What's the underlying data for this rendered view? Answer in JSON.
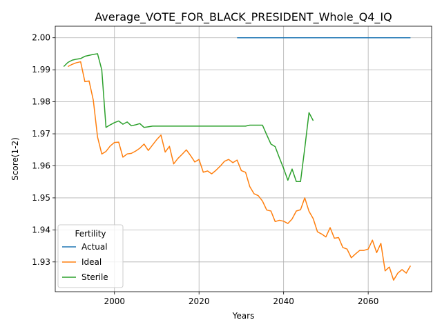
{
  "chart_data": {
    "type": "line",
    "title": "Average_VOTE_FOR_BLACK_PRESIDENT_Whole_Q4_IQ",
    "xlabel": "Years",
    "ylabel": "Score(1-2)",
    "xlim": [
      1986,
      2075
    ],
    "ylim": [
      1.9207,
      2.0036
    ],
    "xticks": [
      2000,
      2020,
      2040,
      2060
    ],
    "xtick_labels": [
      "2000",
      "2020",
      "2040",
      "2060"
    ],
    "yticks": [
      1.93,
      1.94,
      1.95,
      1.96,
      1.97,
      1.98,
      1.99,
      2.0
    ],
    "ytick_labels": [
      "1.93",
      "1.94",
      "1.95",
      "1.96",
      "1.97",
      "1.98",
      "1.99",
      "2.00"
    ],
    "grid": true,
    "legend": {
      "title": "Fertility",
      "placement": "lower left"
    },
    "series": [
      {
        "name": "Actual",
        "color": "#1f77b4",
        "x": [
          2029,
          2070
        ],
        "y": [
          2.0,
          2.0
        ]
      },
      {
        "name": "Ideal",
        "color": "#ff7f0e",
        "x": [
          1989,
          1990,
          1991,
          1992,
          1993,
          1994,
          1995,
          1996,
          1997,
          1998,
          1999,
          2000,
          2001,
          2002,
          2003,
          2004,
          2005,
          2006,
          2007,
          2008,
          2009,
          2010,
          2011,
          2012,
          2013,
          2014,
          2015,
          2016,
          2017,
          2018,
          2019,
          2020,
          2021,
          2022,
          2023,
          2024,
          2025,
          2026,
          2027,
          2028,
          2029,
          2030,
          2031,
          2032,
          2033,
          2034,
          2035,
          2036,
          2037,
          2038,
          2039,
          2040,
          2041,
          2042,
          2043,
          2044,
          2045,
          2046,
          2047,
          2048,
          2049,
          2050,
          2051,
          2052,
          2053,
          2054,
          2055,
          2056,
          2057,
          2058,
          2059,
          2060,
          2061,
          2062,
          2063,
          2064,
          2065,
          2066,
          2067,
          2068,
          2069,
          2070
        ],
        "y": [
          1.991,
          1.9917,
          1.9922,
          1.9925,
          1.9863,
          1.9865,
          1.9805,
          1.969,
          1.9637,
          1.9645,
          1.9662,
          1.9673,
          1.9674,
          1.9627,
          1.9637,
          1.9639,
          1.9646,
          1.9655,
          1.9668,
          1.9648,
          1.9665,
          1.9682,
          1.9696,
          1.9643,
          1.9661,
          1.9606,
          1.9623,
          1.9636,
          1.965,
          1.9632,
          1.9612,
          1.962,
          1.958,
          1.9584,
          1.9575,
          1.9586,
          1.9599,
          1.9614,
          1.962,
          1.961,
          1.9618,
          1.9585,
          1.958,
          1.9535,
          1.9513,
          1.9507,
          1.949,
          1.9462,
          1.9459,
          1.9426,
          1.943,
          1.9427,
          1.942,
          1.9434,
          1.9459,
          1.9463,
          1.95,
          1.9458,
          1.9435,
          1.9394,
          1.9387,
          1.9378,
          1.9407,
          1.9374,
          1.9376,
          1.9345,
          1.934,
          1.9313,
          1.9325,
          1.9336,
          1.9336,
          1.934,
          1.9368,
          1.9329,
          1.9358,
          1.9272,
          1.9284,
          1.9243,
          1.9265,
          1.9276,
          1.9265,
          1.9288
        ]
      },
      {
        "name": "Sterile",
        "color": "#2ca02c",
        "x": [
          1988,
          1989,
          1990,
          1991,
          1992,
          1993,
          1994,
          1995,
          1996,
          1997,
          1998,
          1999,
          2000,
          2001,
          2002,
          2003,
          2004,
          2005,
          2006,
          2007,
          2008,
          2009,
          2010,
          2011,
          2012,
          2013,
          2014,
          2015,
          2016,
          2017,
          2018,
          2019,
          2020,
          2021,
          2022,
          2023,
          2024,
          2025,
          2026,
          2027,
          2028,
          2029,
          2030,
          2031,
          2032,
          2033,
          2034,
          2035,
          2036,
          2037,
          2038,
          2039,
          2040,
          2041,
          2042,
          2043,
          2044,
          2045,
          2046,
          2047
        ],
        "y": [
          1.991,
          1.9923,
          1.993,
          1.9933,
          1.9935,
          1.9942,
          1.9945,
          1.9948,
          1.995,
          1.99,
          1.972,
          1.9728,
          1.9735,
          1.974,
          1.973,
          1.9737,
          1.9725,
          1.9728,
          1.9732,
          1.972,
          1.9722,
          1.9724,
          1.9724,
          1.9724,
          1.9724,
          1.9724,
          1.9724,
          1.9724,
          1.9724,
          1.9724,
          1.9724,
          1.9724,
          1.9724,
          1.9724,
          1.9724,
          1.9724,
          1.9724,
          1.9724,
          1.9724,
          1.9724,
          1.9724,
          1.9724,
          1.9724,
          1.9724,
          1.9727,
          1.9727,
          1.9727,
          1.9727,
          1.9697,
          1.9668,
          1.966,
          1.9625,
          1.9592,
          1.9555,
          1.959,
          1.9551,
          1.9551,
          1.9655,
          1.9766,
          1.9741
        ]
      }
    ]
  }
}
